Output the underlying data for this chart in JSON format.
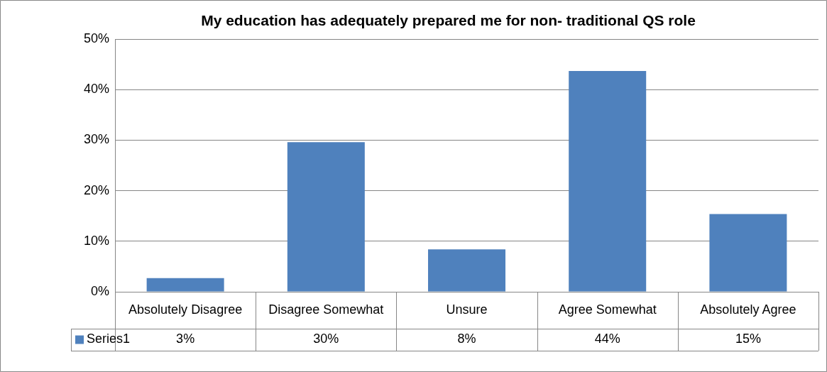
{
  "chart_data": {
    "type": "bar",
    "title": "My education has adequately prepared me for non- traditional QS role",
    "categories": [
      "Absolutely Disagree",
      "Disagree Somewhat",
      "Unsure",
      "Agree Somewhat",
      "Absolutely Agree"
    ],
    "series": [
      {
        "name": "Series1",
        "color": "#4f81bd",
        "values": [
          2.7,
          29.6,
          8.4,
          43.7,
          15.4
        ],
        "value_labels": [
          "3%",
          "30%",
          "8%",
          "44%",
          "15%"
        ]
      }
    ],
    "ylim": [
      0,
      50
    ],
    "yticks": [
      {
        "value": 0,
        "label": "0%"
      },
      {
        "value": 10,
        "label": "10%"
      },
      {
        "value": 20,
        "label": "20%"
      },
      {
        "value": 30,
        "label": "30%"
      },
      {
        "value": 40,
        "label": "40%"
      },
      {
        "value": 50,
        "label": "50%"
      }
    ],
    "grid": "y",
    "legend": "bottom"
  }
}
